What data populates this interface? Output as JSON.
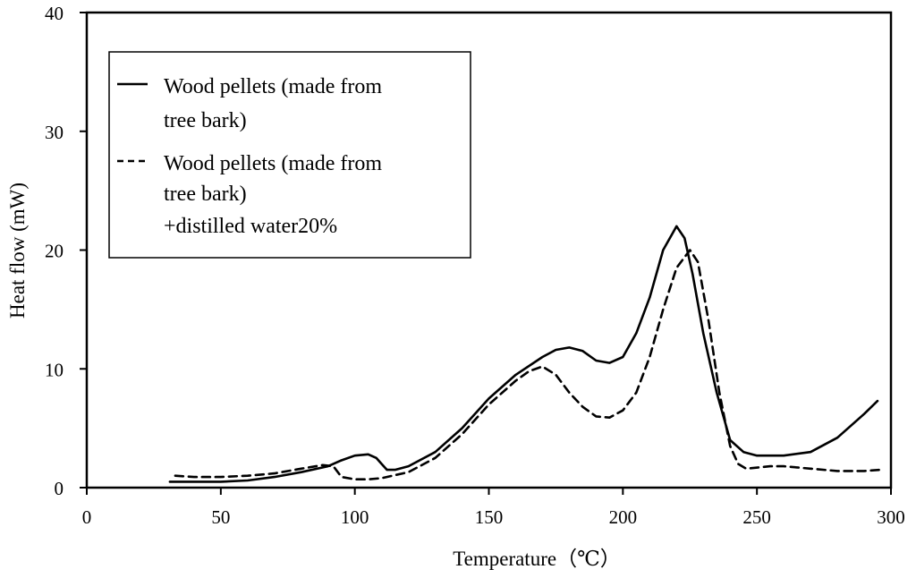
{
  "chart_data": {
    "type": "line",
    "xlabel": "Temperature（℃）",
    "ylabel": "Heat flow (mW)",
    "xlim": [
      0,
      300
    ],
    "ylim": [
      0,
      40
    ],
    "x_ticks": [
      0,
      50,
      100,
      150,
      200,
      250,
      300
    ],
    "y_ticks": [
      0,
      10,
      20,
      30,
      40
    ],
    "grid": false,
    "legend_position": "top-left",
    "series": [
      {
        "name": "Wood pellets (made from tree bark)",
        "legend_lines": [
          "Wood pellets (made from",
          "tree bark)"
        ],
        "style": "solid",
        "color": "#000000",
        "points": [
          [
            31,
            0.5
          ],
          [
            40,
            0.5
          ],
          [
            50,
            0.5
          ],
          [
            60,
            0.6
          ],
          [
            70,
            0.9
          ],
          [
            80,
            1.3
          ],
          [
            90,
            1.8
          ],
          [
            95,
            2.3
          ],
          [
            100,
            2.7
          ],
          [
            105,
            2.8
          ],
          [
            108,
            2.5
          ],
          [
            110,
            2.0
          ],
          [
            112,
            1.5
          ],
          [
            115,
            1.5
          ],
          [
            120,
            1.8
          ],
          [
            130,
            3.0
          ],
          [
            140,
            5.0
          ],
          [
            150,
            7.5
          ],
          [
            160,
            9.5
          ],
          [
            170,
            11.0
          ],
          [
            175,
            11.6
          ],
          [
            180,
            11.8
          ],
          [
            185,
            11.5
          ],
          [
            190,
            10.7
          ],
          [
            195,
            10.5
          ],
          [
            200,
            11.0
          ],
          [
            205,
            13.0
          ],
          [
            210,
            16.0
          ],
          [
            215,
            20.0
          ],
          [
            220,
            22.0
          ],
          [
            223,
            21.0
          ],
          [
            226,
            18.0
          ],
          [
            230,
            13.0
          ],
          [
            235,
            8.0
          ],
          [
            240,
            4.0
          ],
          [
            245,
            3.0
          ],
          [
            250,
            2.7
          ],
          [
            260,
            2.7
          ],
          [
            270,
            3.0
          ],
          [
            280,
            4.2
          ],
          [
            290,
            6.2
          ],
          [
            295,
            7.3
          ]
        ]
      },
      {
        "name": "Wood pellets (made from tree bark) +distilled water20%",
        "legend_lines": [
          "Wood pellets (made from",
          "tree bark)",
          "+distilled water20%"
        ],
        "style": "dashed",
        "color": "#000000",
        "points": [
          [
            33,
            1.0
          ],
          [
            40,
            0.9
          ],
          [
            50,
            0.9
          ],
          [
            60,
            1.0
          ],
          [
            70,
            1.2
          ],
          [
            80,
            1.6
          ],
          [
            88,
            1.9
          ],
          [
            92,
            1.8
          ],
          [
            95,
            0.9
          ],
          [
            100,
            0.7
          ],
          [
            105,
            0.7
          ],
          [
            110,
            0.8
          ],
          [
            120,
            1.3
          ],
          [
            130,
            2.5
          ],
          [
            140,
            4.5
          ],
          [
            150,
            7.0
          ],
          [
            160,
            9.0
          ],
          [
            165,
            9.8
          ],
          [
            170,
            10.2
          ],
          [
            175,
            9.5
          ],
          [
            180,
            8.0
          ],
          [
            185,
            6.8
          ],
          [
            190,
            6.0
          ],
          [
            195,
            5.9
          ],
          [
            200,
            6.5
          ],
          [
            205,
            8.0
          ],
          [
            210,
            11.0
          ],
          [
            215,
            15.0
          ],
          [
            220,
            18.5
          ],
          [
            225,
            20.0
          ],
          [
            228,
            19.0
          ],
          [
            232,
            14.0
          ],
          [
            236,
            8.0
          ],
          [
            240,
            3.5
          ],
          [
            243,
            2.0
          ],
          [
            246,
            1.6
          ],
          [
            255,
            1.8
          ],
          [
            260,
            1.8
          ],
          [
            270,
            1.6
          ],
          [
            280,
            1.4
          ],
          [
            290,
            1.4
          ],
          [
            296,
            1.5
          ]
        ]
      }
    ]
  }
}
